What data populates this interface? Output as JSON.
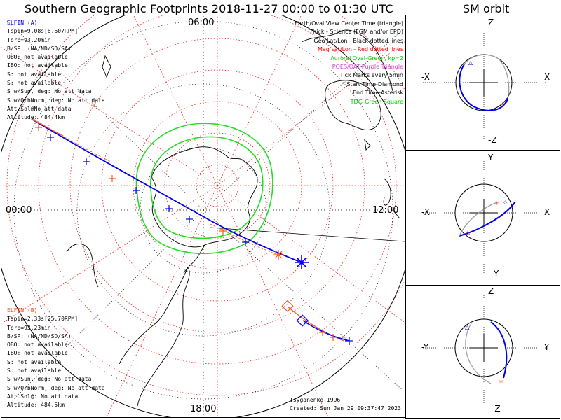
{
  "title": "Southern Geographic Footprints 2018-11-27 00:00 to 01:30 UTC",
  "orbit_title": "SM orbit",
  "elfin_a": {
    "name": "ELFIN (A)",
    "color": "#0000ff",
    "lines": [
      "Tspin=9.08s[6.607RPM]",
      "Torb=93.20min",
      "B/SP: (NA/ND/SD/SA)",
      "OBO: not available",
      "IBO: not available",
      "S: not available",
      "S: not available",
      "S w/Sun, deg: No att data",
      "S w/OrbNorm, deg: No att data",
      "Att.Sol@No att data",
      "Altitude: 484.4km"
    ]
  },
  "elfin_b": {
    "name": "ELFIN (B)",
    "color": "#ff4400",
    "lines": [
      "Tspin=2.33s[25.70RPM]",
      "Torb=93.23min",
      "B/SP: (NA/ND/SD/SA)",
      "OBO: not available",
      "IBO: not available",
      "S: not available",
      "S: not available",
      "S w/Sun, deg: No att data",
      "S w/OrbNorm, deg: No att data",
      "Att.Sol@: No att data",
      "Altitude: 484.5km"
    ]
  },
  "legend": [
    {
      "text": "Earth/Oval View Center Time (triangle)",
      "color": "#000000"
    },
    {
      "text": "Thick - Science (FGM and/or EPD)",
      "color": "#000000"
    },
    {
      "text": "Geo Lat/Lon - Black dotted lines",
      "color": "#000000"
    },
    {
      "text": "Mag Lat/Lon - Red dotted lines",
      "color": "#ff0000"
    },
    {
      "text": "Auroral Oval-Green, kp=2",
      "color": "#00cc00"
    },
    {
      "text": "POES/OAT-Purple Triangle",
      "color": "#cc44cc"
    },
    {
      "text": "Tick Marks every 5min",
      "color": "#000000"
    },
    {
      "text": "Start Time-Diamond",
      "color": "#000000"
    },
    {
      "text": "End Time-Asterisk",
      "color": "#000000"
    },
    {
      "text": "TDG-Green Square",
      "color": "#00cc00"
    }
  ],
  "hours": {
    "top": "06:00",
    "left": "00:00",
    "right": "12:00",
    "bottom": "18:00"
  },
  "footer": {
    "model": "Tsyganenko-1996",
    "created": "Created: Sun Jan 29 09:37:47 2023"
  },
  "panels": [
    {
      "id": "xz",
      "top": "Z",
      "bottom": "-Z",
      "left": "-X",
      "right": "X"
    },
    {
      "id": "xy",
      "top": "Y",
      "bottom": "-Y",
      "left": "-X",
      "right": "X"
    },
    {
      "id": "yz",
      "top": "Z",
      "bottom": "-Z",
      "left": "-Y",
      "right": "Y"
    }
  ]
}
